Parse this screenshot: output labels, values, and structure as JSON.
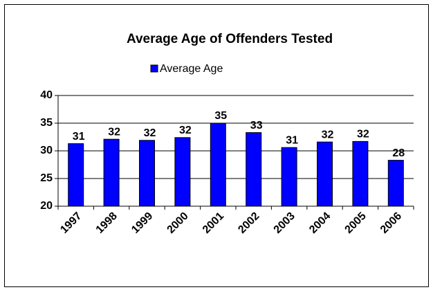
{
  "chart_data": {
    "type": "bar",
    "title": "Average Age of Offenders Tested",
    "categories": [
      "1997",
      "1998",
      "1999",
      "2000",
      "2001",
      "2002",
      "2003",
      "2004",
      "2005",
      "2006"
    ],
    "series": [
      {
        "name": "Average Age",
        "color": "#0000ff",
        "values": [
          31.3,
          32.1,
          31.9,
          32.4,
          35.0,
          33.3,
          30.6,
          31.6,
          31.7,
          28.3
        ],
        "value_labels": [
          "31",
          "32",
          "32",
          "32",
          "35",
          "33",
          "31",
          "32",
          "32",
          "28"
        ]
      }
    ],
    "ylim": [
      20,
      40
    ],
    "yticks": [
      20,
      25,
      30,
      35,
      40
    ],
    "grid": true,
    "legend": "top"
  }
}
